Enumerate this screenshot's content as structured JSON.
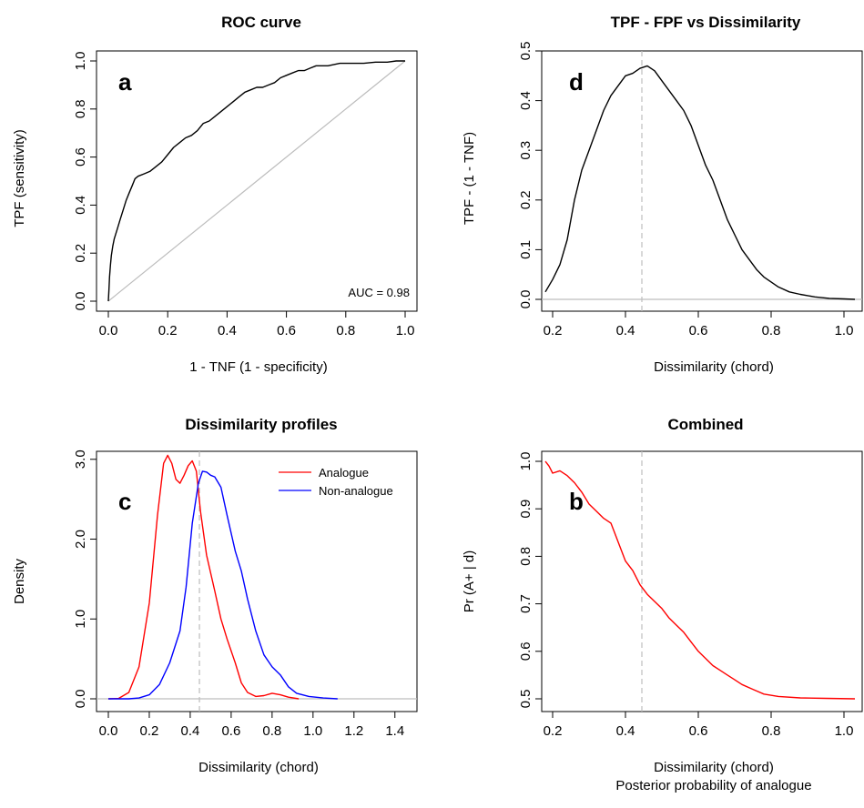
{
  "chart_data": [
    {
      "id": "a",
      "type": "line",
      "title": "ROC curve",
      "panel_label": "a",
      "xlabel": "1 - TNF (1 - specificity)",
      "ylabel": "TPF (sensitivity)",
      "xlim": [
        0,
        1
      ],
      "ylim": [
        0,
        1
      ],
      "xticks": [
        0.0,
        0.2,
        0.4,
        0.6,
        0.8,
        1.0
      ],
      "yticks": [
        0.0,
        0.2,
        0.4,
        0.6,
        0.8,
        1.0
      ],
      "annotation": "AUC = 0.98",
      "reference_line": {
        "x": [
          0,
          1
        ],
        "y": [
          0,
          1
        ],
        "color": "#bdbdbd"
      },
      "series": [
        {
          "color": "#000000",
          "points": [
            [
              0,
              0
            ],
            [
              0.002,
              0.05
            ],
            [
              0.004,
              0.1
            ],
            [
              0.007,
              0.15
            ],
            [
              0.01,
              0.19
            ],
            [
              0.015,
              0.23
            ],
            [
              0.02,
              0.26
            ],
            [
              0.03,
              0.3
            ],
            [
              0.04,
              0.34
            ],
            [
              0.05,
              0.38
            ],
            [
              0.06,
              0.42
            ],
            [
              0.07,
              0.45
            ],
            [
              0.08,
              0.48
            ],
            [
              0.09,
              0.51
            ],
            [
              0.1,
              0.52
            ],
            [
              0.12,
              0.53
            ],
            [
              0.14,
              0.54
            ],
            [
              0.16,
              0.56
            ],
            [
              0.18,
              0.58
            ],
            [
              0.2,
              0.61
            ],
            [
              0.22,
              0.64
            ],
            [
              0.24,
              0.66
            ],
            [
              0.26,
              0.68
            ],
            [
              0.28,
              0.69
            ],
            [
              0.3,
              0.71
            ],
            [
              0.32,
              0.74
            ],
            [
              0.34,
              0.75
            ],
            [
              0.36,
              0.77
            ],
            [
              0.38,
              0.79
            ],
            [
              0.4,
              0.81
            ],
            [
              0.42,
              0.83
            ],
            [
              0.44,
              0.85
            ],
            [
              0.46,
              0.87
            ],
            [
              0.48,
              0.88
            ],
            [
              0.5,
              0.89
            ],
            [
              0.52,
              0.89
            ],
            [
              0.54,
              0.9
            ],
            [
              0.56,
              0.91
            ],
            [
              0.58,
              0.93
            ],
            [
              0.6,
              0.94
            ],
            [
              0.62,
              0.95
            ],
            [
              0.64,
              0.96
            ],
            [
              0.66,
              0.96
            ],
            [
              0.68,
              0.97
            ],
            [
              0.7,
              0.98
            ],
            [
              0.74,
              0.98
            ],
            [
              0.78,
              0.99
            ],
            [
              0.82,
              0.99
            ],
            [
              0.86,
              0.99
            ],
            [
              0.9,
              0.995
            ],
            [
              0.94,
              0.995
            ],
            [
              0.97,
              1.0
            ],
            [
              1.0,
              1.0
            ]
          ]
        }
      ]
    },
    {
      "id": "d",
      "type": "line",
      "title": "TPF - FPF vs Dissimilarity",
      "panel_label": "d",
      "xlabel": "Dissimilarity (chord)",
      "ylabel": "TPF - (1 - TNF)",
      "xlim": [
        0.17,
        1.05
      ],
      "ylim": [
        0,
        0.5
      ],
      "xticks": [
        0.2,
        0.4,
        0.6,
        0.8,
        1.0
      ],
      "yticks": [
        0.0,
        0.1,
        0.2,
        0.3,
        0.4,
        0.5
      ],
      "hline": {
        "y": 0,
        "color": "#bdbdbd"
      },
      "vline": {
        "x": 0.445,
        "color": "#bdbdbd"
      },
      "series": [
        {
          "color": "#000000",
          "points": [
            [
              0.18,
              0.015
            ],
            [
              0.2,
              0.04
            ],
            [
              0.22,
              0.07
            ],
            [
              0.24,
              0.12
            ],
            [
              0.26,
              0.2
            ],
            [
              0.28,
              0.26
            ],
            [
              0.3,
              0.3
            ],
            [
              0.32,
              0.34
            ],
            [
              0.34,
              0.38
            ],
            [
              0.36,
              0.41
            ],
            [
              0.38,
              0.43
            ],
            [
              0.4,
              0.45
            ],
            [
              0.42,
              0.455
            ],
            [
              0.44,
              0.465
            ],
            [
              0.46,
              0.47
            ],
            [
              0.48,
              0.46
            ],
            [
              0.5,
              0.44
            ],
            [
              0.52,
              0.42
            ],
            [
              0.54,
              0.4
            ],
            [
              0.56,
              0.38
            ],
            [
              0.58,
              0.35
            ],
            [
              0.6,
              0.31
            ],
            [
              0.62,
              0.27
            ],
            [
              0.64,
              0.24
            ],
            [
              0.66,
              0.2
            ],
            [
              0.68,
              0.16
            ],
            [
              0.7,
              0.13
            ],
            [
              0.72,
              0.1
            ],
            [
              0.74,
              0.08
            ],
            [
              0.76,
              0.06
            ],
            [
              0.78,
              0.045
            ],
            [
              0.8,
              0.035
            ],
            [
              0.82,
              0.025
            ],
            [
              0.85,
              0.015
            ],
            [
              0.88,
              0.01
            ],
            [
              0.92,
              0.005
            ],
            [
              0.96,
              0.002
            ],
            [
              1.0,
              0.001
            ],
            [
              1.03,
              0.0
            ]
          ]
        }
      ]
    },
    {
      "id": "c",
      "type": "line",
      "title": "Dissimilarity profiles",
      "panel_label": "c",
      "xlabel": "Dissimilarity (chord)",
      "ylabel": "Density",
      "xlim": [
        0,
        1.45
      ],
      "ylim": [
        0,
        3.1
      ],
      "xticks": [
        0.0,
        0.2,
        0.4,
        0.6,
        0.8,
        1.0,
        1.2,
        1.4
      ],
      "yticks": [
        0.0,
        1.0,
        2.0,
        3.0
      ],
      "hline": {
        "y": 0,
        "color": "#bdbdbd"
      },
      "vline": {
        "x": 0.445,
        "color": "#bdbdbd"
      },
      "legend": {
        "position": "top-right"
      },
      "series": [
        {
          "name": "Analogue",
          "color": "#ff0000",
          "points": [
            [
              0,
              0
            ],
            [
              0.05,
              0.005
            ],
            [
              0.1,
              0.08
            ],
            [
              0.15,
              0.4
            ],
            [
              0.2,
              1.2
            ],
            [
              0.24,
              2.3
            ],
            [
              0.27,
              2.95
            ],
            [
              0.29,
              3.05
            ],
            [
              0.31,
              2.95
            ],
            [
              0.33,
              2.75
            ],
            [
              0.35,
              2.7
            ],
            [
              0.37,
              2.8
            ],
            [
              0.39,
              2.92
            ],
            [
              0.41,
              2.98
            ],
            [
              0.43,
              2.85
            ],
            [
              0.45,
              2.35
            ],
            [
              0.48,
              1.8
            ],
            [
              0.52,
              1.35
            ],
            [
              0.55,
              1.0
            ],
            [
              0.58,
              0.75
            ],
            [
              0.62,
              0.45
            ],
            [
              0.65,
              0.2
            ],
            [
              0.68,
              0.08
            ],
            [
              0.72,
              0.03
            ],
            [
              0.76,
              0.04
            ],
            [
              0.8,
              0.07
            ],
            [
              0.84,
              0.05
            ],
            [
              0.88,
              0.02
            ],
            [
              0.93,
              0.0
            ]
          ]
        },
        {
          "name": "Non-analogue",
          "color": "#0000ff",
          "points": [
            [
              0,
              0
            ],
            [
              0.1,
              0.0
            ],
            [
              0.15,
              0.01
            ],
            [
              0.2,
              0.05
            ],
            [
              0.25,
              0.18
            ],
            [
              0.3,
              0.45
            ],
            [
              0.35,
              0.85
            ],
            [
              0.38,
              1.4
            ],
            [
              0.41,
              2.2
            ],
            [
              0.44,
              2.7
            ],
            [
              0.46,
              2.85
            ],
            [
              0.48,
              2.84
            ],
            [
              0.5,
              2.8
            ],
            [
              0.52,
              2.78
            ],
            [
              0.55,
              2.65
            ],
            [
              0.58,
              2.3
            ],
            [
              0.62,
              1.85
            ],
            [
              0.65,
              1.6
            ],
            [
              0.68,
              1.25
            ],
            [
              0.72,
              0.85
            ],
            [
              0.76,
              0.55
            ],
            [
              0.8,
              0.4
            ],
            [
              0.84,
              0.3
            ],
            [
              0.88,
              0.15
            ],
            [
              0.92,
              0.07
            ],
            [
              0.98,
              0.03
            ],
            [
              1.05,
              0.01
            ],
            [
              1.12,
              0.0
            ]
          ]
        }
      ]
    },
    {
      "id": "b",
      "type": "line",
      "title": "Combined",
      "panel_label": "b",
      "xlabel": "Dissimilarity (chord)",
      "sublabel": "Posterior probability of analogue",
      "ylabel": "Pr (A+ | d)",
      "xlim": [
        0.17,
        1.05
      ],
      "ylim": [
        0.5,
        1.0
      ],
      "xticks": [
        0.2,
        0.4,
        0.6,
        0.8,
        1.0
      ],
      "yticks": [
        0.5,
        0.6,
        0.7,
        0.8,
        0.9,
        1.0
      ],
      "vline": {
        "x": 0.445,
        "color": "#bdbdbd"
      },
      "series": [
        {
          "color": "#ff0000",
          "points": [
            [
              0.18,
              1.0
            ],
            [
              0.19,
              0.99
            ],
            [
              0.2,
              0.975
            ],
            [
              0.22,
              0.98
            ],
            [
              0.24,
              0.97
            ],
            [
              0.26,
              0.955
            ],
            [
              0.28,
              0.935
            ],
            [
              0.3,
              0.91
            ],
            [
              0.32,
              0.895
            ],
            [
              0.34,
              0.88
            ],
            [
              0.36,
              0.87
            ],
            [
              0.37,
              0.85
            ],
            [
              0.38,
              0.83
            ],
            [
              0.4,
              0.79
            ],
            [
              0.42,
              0.77
            ],
            [
              0.44,
              0.74
            ],
            [
              0.46,
              0.72
            ],
            [
              0.48,
              0.705
            ],
            [
              0.5,
              0.69
            ],
            [
              0.52,
              0.67
            ],
            [
              0.54,
              0.655
            ],
            [
              0.56,
              0.64
            ],
            [
              0.58,
              0.62
            ],
            [
              0.6,
              0.6
            ],
            [
              0.62,
              0.585
            ],
            [
              0.64,
              0.57
            ],
            [
              0.66,
              0.56
            ],
            [
              0.68,
              0.55
            ],
            [
              0.7,
              0.54
            ],
            [
              0.72,
              0.53
            ],
            [
              0.75,
              0.52
            ],
            [
              0.78,
              0.51
            ],
            [
              0.82,
              0.505
            ],
            [
              0.88,
              0.502
            ],
            [
              0.95,
              0.501
            ],
            [
              1.03,
              0.5
            ]
          ]
        }
      ]
    }
  ]
}
